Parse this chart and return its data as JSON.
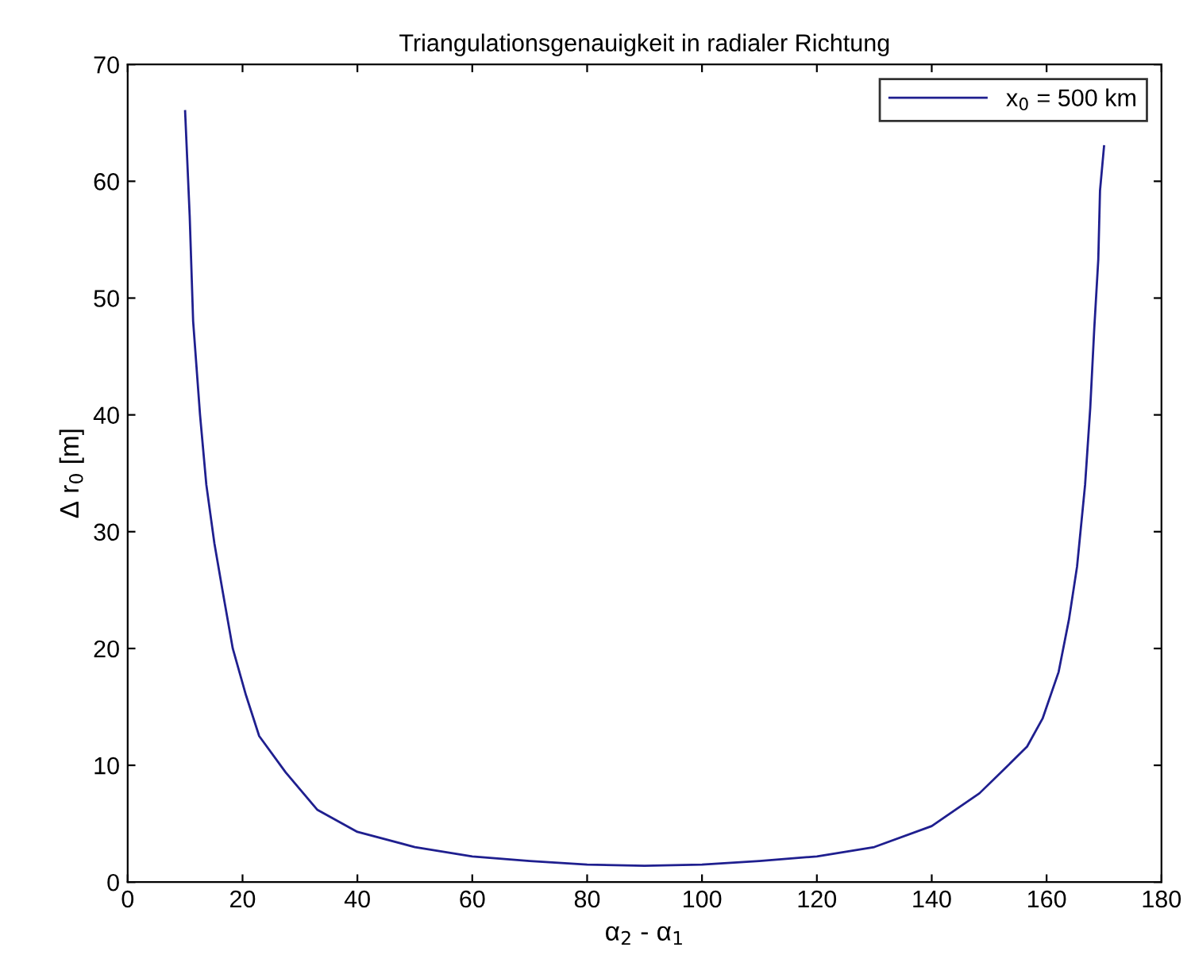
{
  "chart_data": {
    "type": "line",
    "title": "Triangulationsgenauigkeit in radialer Richtung",
    "xlabel": "α$_{2}$ - α$_{1}$",
    "ylabel": "Δ r$_{0}$ [m]",
    "series": [
      {
        "name": "x$_{0}$ = 500 km",
        "color": "#1f1f8f",
        "x": [
          10,
          10.8,
          11.4,
          12.6,
          13.7,
          15.1,
          16.5,
          18.3,
          20.6,
          22.9,
          27.5,
          33,
          40,
          50,
          60,
          70,
          80,
          90,
          100,
          110,
          120,
          130,
          140,
          148.3,
          152.9,
          156.6,
          159.3,
          162.1,
          163.9,
          165.3,
          166.7,
          167.6,
          168.3,
          169,
          169.3,
          170
        ],
        "values": [
          66,
          57,
          48,
          40,
          34,
          29,
          25,
          20,
          16,
          12.5,
          9.4,
          6.2,
          4.3,
          3,
          2.2,
          1.8,
          1.5,
          1.4,
          1.5,
          1.8,
          2.2,
          3,
          4.8,
          7.6,
          9.8,
          11.6,
          14,
          18,
          22.5,
          27,
          34,
          40.6,
          47.4,
          53.3,
          59.2,
          63
        ]
      }
    ],
    "xlim": [
      0,
      180
    ],
    "xticks": [
      0,
      20,
      40,
      60,
      80,
      100,
      120,
      140,
      160,
      180
    ],
    "ylim": [
      0,
      70
    ],
    "yticks": [
      0,
      10,
      20,
      30,
      40,
      50,
      60,
      70
    ],
    "legend": "top right"
  }
}
